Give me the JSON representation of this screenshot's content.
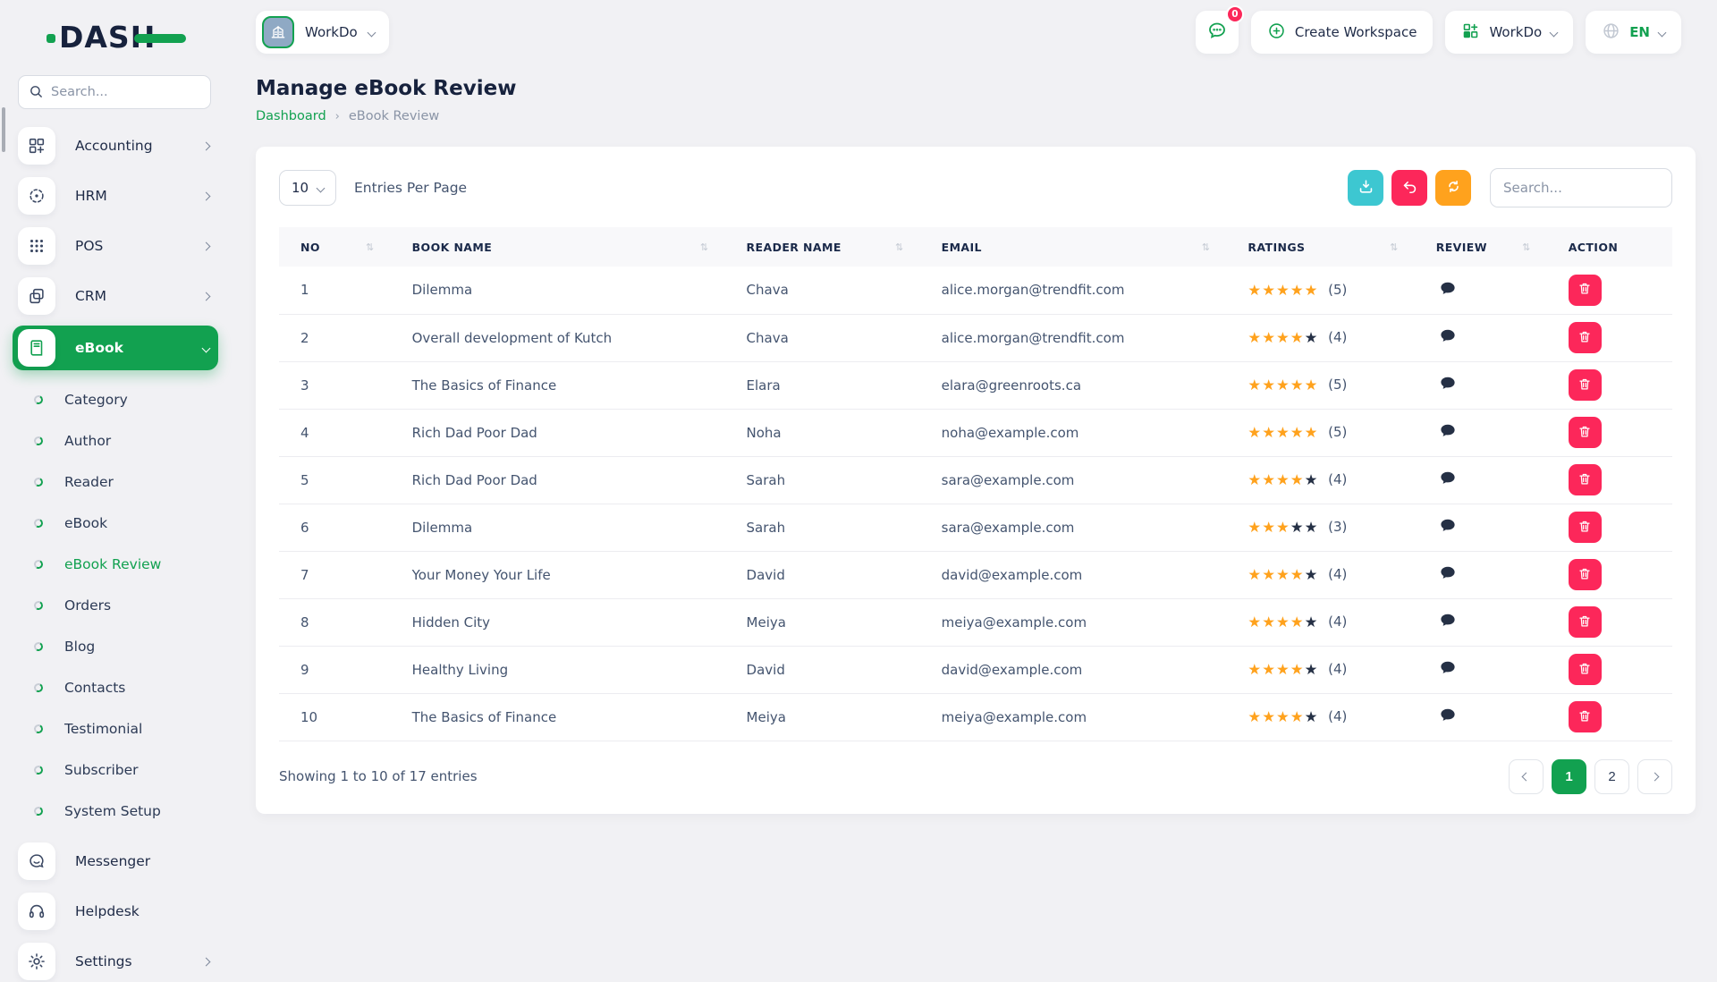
{
  "brand": {
    "logo_text": "DASH"
  },
  "colors": {
    "primary_green": "#12a150",
    "star_filled": "#ffa21d",
    "star_empty": "#253045",
    "danger_pink": "#fc275a",
    "teal": "#3dc7d1",
    "orange": "#ffa21d"
  },
  "sidebar": {
    "search_placeholder": "Search...",
    "modules": [
      {
        "label": "Accounting",
        "icon": "grid-plus-icon"
      },
      {
        "label": "HRM",
        "icon": "target-icon"
      },
      {
        "label": "POS",
        "icon": "dots-grid-icon"
      },
      {
        "label": "CRM",
        "icon": "copy-icon"
      }
    ],
    "active_module": {
      "label": "eBook",
      "icon": "book-icon"
    },
    "submenu": [
      {
        "label": "Category",
        "active": false
      },
      {
        "label": "Author",
        "active": false
      },
      {
        "label": "Reader",
        "active": false
      },
      {
        "label": "eBook",
        "active": false
      },
      {
        "label": "eBook Review",
        "active": true
      },
      {
        "label": "Orders",
        "active": false
      },
      {
        "label": "Blog",
        "active": false
      },
      {
        "label": "Contacts",
        "active": false
      },
      {
        "label": "Testimonial",
        "active": false
      },
      {
        "label": "Subscriber",
        "active": false
      },
      {
        "label": "System Setup",
        "active": false
      }
    ],
    "tools": [
      {
        "label": "Messenger",
        "icon": "chat-icon"
      },
      {
        "label": "Helpdesk",
        "icon": "headset-icon"
      }
    ],
    "settings": {
      "label": "Settings",
      "icon": "gear-icon"
    }
  },
  "header": {
    "workspace_name": "WorkDo",
    "messages_badge": "0",
    "create_workspace_label": "Create Workspace",
    "workspace_menu_label": "WorkDo",
    "language": "EN"
  },
  "page": {
    "title": "Manage eBook Review",
    "breadcrumb": [
      {
        "label": "Dashboard"
      },
      {
        "label": "eBook Review"
      }
    ]
  },
  "card": {
    "entries_select": "10",
    "entries_label": "Entries Per Page",
    "search_placeholder": "Search...",
    "table": {
      "columns": [
        {
          "label": "NO",
          "sortable": true
        },
        {
          "label": "BOOK NAME",
          "sortable": true
        },
        {
          "label": "READER NAME",
          "sortable": true
        },
        {
          "label": "EMAIL",
          "sortable": true
        },
        {
          "label": "RATINGS",
          "sortable": true
        },
        {
          "label": "REVIEW",
          "sortable": true
        },
        {
          "label": "ACTION",
          "sortable": false
        }
      ],
      "rows": [
        {
          "no": "1",
          "book": "Dilemma",
          "reader": "Chava",
          "email": "alice.morgan@trendfit.com",
          "rating": 5,
          "rating_max": 5
        },
        {
          "no": "2",
          "book": "Overall development of Kutch",
          "reader": "Chava",
          "email": "alice.morgan@trendfit.com",
          "rating": 4,
          "rating_max": 5
        },
        {
          "no": "3",
          "book": "The Basics of Finance",
          "reader": "Elara",
          "email": "elara@greenroots.ca",
          "rating": 5,
          "rating_max": 5
        },
        {
          "no": "4",
          "book": "Rich Dad Poor Dad",
          "reader": "Noha",
          "email": "noha@example.com",
          "rating": 5,
          "rating_max": 5
        },
        {
          "no": "5",
          "book": "Rich Dad Poor Dad",
          "reader": "Sarah",
          "email": "sara@example.com",
          "rating": 4,
          "rating_max": 5
        },
        {
          "no": "6",
          "book": "Dilemma",
          "reader": "Sarah",
          "email": "sara@example.com",
          "rating": 3,
          "rating_max": 5
        },
        {
          "no": "7",
          "book": "Your Money Your Life",
          "reader": "David",
          "email": "david@example.com",
          "rating": 4,
          "rating_max": 5
        },
        {
          "no": "8",
          "book": "Hidden City",
          "reader": "Meiya",
          "email": "meiya@example.com",
          "rating": 4,
          "rating_max": 5
        },
        {
          "no": "9",
          "book": "Healthy Living",
          "reader": "David",
          "email": "david@example.com",
          "rating": 4,
          "rating_max": 5
        },
        {
          "no": "10",
          "book": "The Basics of Finance",
          "reader": "Meiya",
          "email": "meiya@example.com",
          "rating": 4,
          "rating_max": 5
        }
      ]
    },
    "footer": {
      "showing_text": "Showing 1 to 10 of 17 entries",
      "pagination": {
        "pages": [
          {
            "label": "1",
            "active": true
          },
          {
            "label": "2",
            "active": false
          }
        ]
      }
    }
  }
}
